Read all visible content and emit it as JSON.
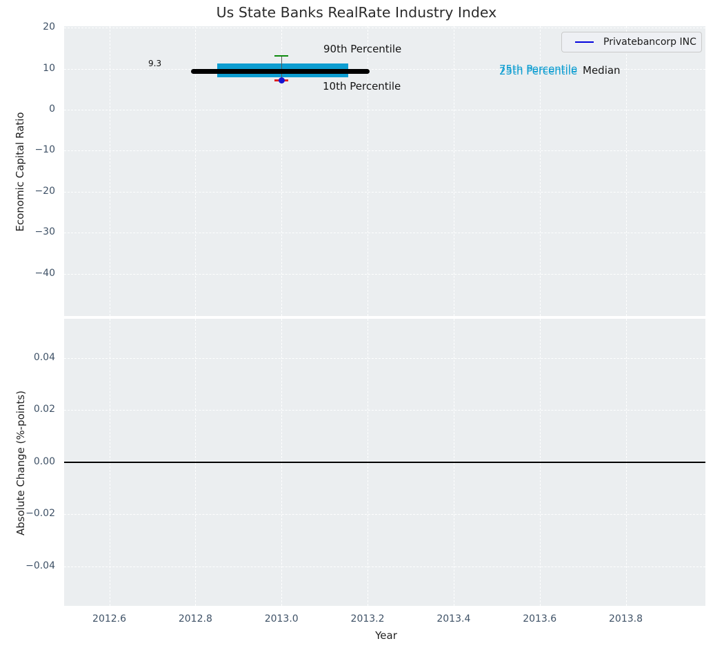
{
  "title": "Us State Banks RealRate Industry Index",
  "legend": {
    "label": "Privatebancorp INC",
    "line_color": "#0202dd"
  },
  "annotations": {
    "p90_label": "90th Percentile",
    "p10_label": "10th Percentile",
    "p75_label": "75th Percentile",
    "p25_label": "25th Percentile",
    "median_label": "Median",
    "median_value": "9.3"
  },
  "colors": {
    "plot_background": "#ebeef0",
    "grid": "#ffffff",
    "iqr_box": "#0d9dd1",
    "median_line": "#000000",
    "p90_cap": "#0b8a0b",
    "p10_cap": "#e02020",
    "company_dot": "#1414d2",
    "tick_text": "#3e5166"
  },
  "chart_data": [
    {
      "type": "box",
      "title": "Us State Banks RealRate Industry Index",
      "ylabel": "Economic Capital Ratio",
      "xlim": [
        2012.495,
        2013.985
      ],
      "ylim": [
        -50.3,
        20.35
      ],
      "grid": true,
      "legend_position": "upper right",
      "xticks": [
        2012.6,
        2012.8,
        2013.0,
        2013.2,
        2013.4,
        2013.6,
        2013.8
      ],
      "yticks": [
        20,
        10,
        0,
        -10,
        -20,
        -30,
        -40
      ],
      "ytick_labels": [
        "20",
        "10",
        "0",
        "−10",
        "−20",
        "−30",
        "−40"
      ],
      "box": {
        "year_center": 2013.0,
        "p90": 13.1,
        "p75": 11.3,
        "median": 9.3,
        "p25": 7.9,
        "p10": 7.1,
        "median_line_year_span": [
          2012.79,
          2013.205
        ],
        "box_year_span": [
          2012.85,
          2013.155
        ],
        "cap_halfwidth_years": 0.016
      },
      "series": [
        {
          "name": "Privatebancorp INC",
          "points": [
            {
              "x": 2013.0,
              "y": 7.1
            }
          ]
        }
      ]
    },
    {
      "type": "line",
      "ylabel": "Absolute Change (%-points)",
      "xlabel": "Year",
      "xlim": [
        2012.495,
        2013.985
      ],
      "ylim": [
        -0.0552,
        0.055
      ],
      "grid": true,
      "xticks": [
        2012.6,
        2012.8,
        2013.0,
        2013.2,
        2013.4,
        2013.6,
        2013.8
      ],
      "xtick_labels": [
        "2012.6",
        "2012.8",
        "2013.0",
        "2013.2",
        "2013.4",
        "2013.6",
        "2013.8"
      ],
      "yticks": [
        0.04,
        0.02,
        0.0,
        -0.02,
        -0.04
      ],
      "ytick_labels": [
        "0.04",
        "0.02",
        "0.00",
        "−0.02",
        "−0.04"
      ],
      "zero_line": 0.0,
      "series": []
    }
  ]
}
